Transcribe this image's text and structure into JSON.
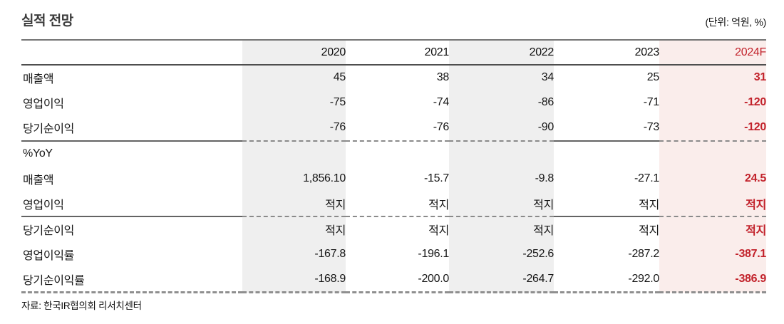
{
  "title": "실적 전망",
  "unit_label": "(단위: 억원, %)",
  "source": "자료: 한국IR협의회 리서치센터",
  "colors": {
    "accent_red": "#C2222B",
    "gray_column_bg": "#EFEFEF",
    "forecast_column_bg": "#FAEDEB",
    "rule_dark": "#4E4E4E",
    "rule_dashed": "#8A8A8A"
  },
  "table": {
    "columns": [
      "",
      "2020",
      "2021",
      "2022",
      "2023",
      "2024F"
    ],
    "rows": [
      {
        "label": "매출액",
        "values": [
          "45",
          "38",
          "34",
          "25",
          "31"
        ]
      },
      {
        "label": "영업이익",
        "values": [
          "-75",
          "-74",
          "-86",
          "-71",
          "-120"
        ]
      },
      {
        "label": "당기순이익",
        "values": [
          "-76",
          "-76",
          "-90",
          "-73",
          "-120"
        ]
      },
      {
        "label": "%YoY",
        "values": [
          "",
          "",
          "",
          "",
          ""
        ],
        "section_break": true
      },
      {
        "label": "매출액",
        "values": [
          "1,856.10",
          "-15.7",
          "-9.8",
          "-27.1",
          "24.5"
        ]
      },
      {
        "label": "영업이익",
        "values": [
          "적지",
          "적지",
          "적지",
          "적지",
          "적지"
        ]
      },
      {
        "label": "당기순이익",
        "values": [
          "적지",
          "적지",
          "적지",
          "적지",
          "적지"
        ],
        "section_break": true
      },
      {
        "label": "영업이익률",
        "values": [
          "-167.8",
          "-196.1",
          "-252.6",
          "-287.2",
          "-387.1"
        ]
      },
      {
        "label": "당기순이익률",
        "values": [
          "-168.9",
          "-200.0",
          "-264.7",
          "-292.0",
          "-386.9"
        ]
      }
    ]
  }
}
